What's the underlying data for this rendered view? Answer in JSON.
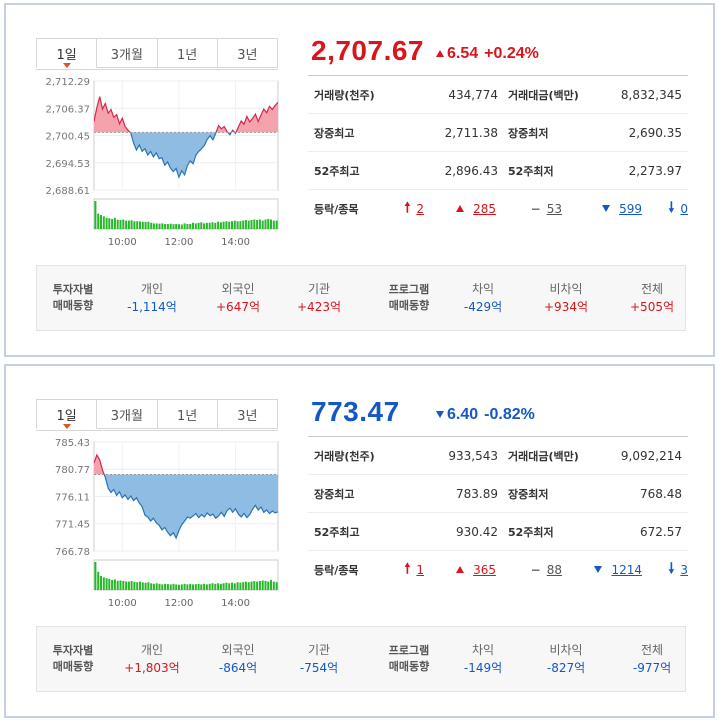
{
  "panels": [
    {
      "tabs": [
        "1일",
        "3개월",
        "1년",
        "3년"
      ],
      "price": "2,707.67",
      "direction": "up",
      "change": "6.54",
      "change_pct": "+0.24%",
      "stats": {
        "vol_label": "거래량(천주)",
        "vol": "434,774",
        "amt_label": "거래대금(백만)",
        "amt": "8,832,345",
        "high_label": "장중최고",
        "high": "2,711.38",
        "low_label": "장중최저",
        "low": "2,690.35",
        "h52_label": "52주최고",
        "h52": "2,896.43",
        "l52_label": "52주최저",
        "l52": "2,273.97",
        "updown_label": "등락/종목",
        "upper_limit": "2",
        "rise": "285",
        "flat": "53",
        "fall": "599",
        "lower_limit": "0"
      },
      "investor": {
        "head": [
          "투자자별",
          "매매동향"
        ],
        "items": [
          {
            "name": "개인",
            "value": "-1,114억",
            "sign": "neg"
          },
          {
            "name": "외국인",
            "value": "+647억",
            "sign": "pos"
          },
          {
            "name": "기관",
            "value": "+423억",
            "sign": "pos"
          }
        ]
      },
      "program": {
        "head": [
          "프로그램",
          "매매동향"
        ],
        "items": [
          {
            "name": "차익",
            "value": "-429억",
            "sign": "neg"
          },
          {
            "name": "비차익",
            "value": "+934억",
            "sign": "pos"
          },
          {
            "name": "전체",
            "value": "+505억",
            "sign": "pos"
          }
        ]
      },
      "chart_data": {
        "type": "area",
        "y_ticks": [
          "2,712.29",
          "2,706.37",
          "2,700.45",
          "2,694.53",
          "2,688.61"
        ],
        "ylim": [
          2688.61,
          2712.29
        ],
        "x_ticks": [
          "10:00",
          "12:00",
          "14:00"
        ],
        "baseline": 2701.13,
        "x": [
          0,
          6,
          12,
          18,
          24,
          30,
          36,
          42,
          48,
          54,
          60,
          66,
          72,
          78,
          84,
          90,
          96,
          102,
          108,
          114,
          120,
          126,
          132,
          138,
          144,
          150,
          156,
          162,
          168,
          174,
          180,
          186,
          192,
          198,
          204,
          210,
          216,
          222,
          228,
          234,
          240,
          246,
          252,
          258,
          264,
          270,
          276,
          282,
          288,
          294,
          300,
          306,
          312,
          318,
          324,
          330,
          336,
          342,
          348,
          354,
          360,
          366,
          372,
          378,
          384,
          390
        ],
        "values": [
          2703.5,
          2706.5,
          2708.9,
          2706.2,
          2707.4,
          2705.3,
          2706.1,
          2704.4,
          2705.0,
          2703.0,
          2704.2,
          2702.4,
          2701.6,
          2701.0,
          2698.8,
          2697.3,
          2698.4,
          2697.0,
          2697.6,
          2696.2,
          2697.0,
          2695.8,
          2696.7,
          2695.4,
          2695.6,
          2694.0,
          2694.7,
          2693.4,
          2692.6,
          2693.3,
          2691.4,
          2692.8,
          2691.9,
          2693.9,
          2694.9,
          2694.3,
          2696.2,
          2697.0,
          2697.6,
          2698.3,
          2699.6,
          2700.4,
          2699.5,
          2700.9,
          2702.6,
          2701.9,
          2702.4,
          2701.3,
          2700.6,
          2701.6,
          2700.9,
          2702.3,
          2703.6,
          2702.9,
          2704.6,
          2703.4,
          2704.1,
          2705.1,
          2703.5,
          2704.9,
          2706.2,
          2705.4,
          2706.8,
          2706.1,
          2707.0,
          2707.67
        ],
        "volume": [
          1.0,
          0.55,
          0.5,
          0.45,
          0.4,
          0.38,
          0.36,
          0.4,
          0.33,
          0.32,
          0.34,
          0.3,
          0.3,
          0.31,
          0.28,
          0.28,
          0.27,
          0.26,
          0.25,
          0.26,
          0.22,
          0.2,
          0.2,
          0.19,
          0.2,
          0.18,
          0.18,
          0.19,
          0.17,
          0.18,
          0.17,
          0.16,
          0.2,
          0.18,
          0.18,
          0.22,
          0.2,
          0.22,
          0.24,
          0.2,
          0.22,
          0.22,
          0.24,
          0.22,
          0.26,
          0.24,
          0.26,
          0.28,
          0.26,
          0.28,
          0.3,
          0.28,
          0.28,
          0.3,
          0.32,
          0.3,
          0.32,
          0.34,
          0.32,
          0.34,
          0.3,
          0.34,
          0.36,
          0.34,
          0.3,
          0.3
        ]
      }
    },
    {
      "tabs": [
        "1일",
        "3개월",
        "1년",
        "3년"
      ],
      "price": "773.47",
      "direction": "down",
      "change": "6.40",
      "change_pct": "-0.82%",
      "stats": {
        "vol_label": "거래량(천주)",
        "vol": "933,543",
        "amt_label": "거래대금(백만)",
        "amt": "9,092,214",
        "high_label": "장중최고",
        "high": "783.89",
        "low_label": "장중최저",
        "low": "768.48",
        "h52_label": "52주최고",
        "h52": "930.42",
        "l52_label": "52주최저",
        "l52": "672.57",
        "updown_label": "등락/종목",
        "upper_limit": "1",
        "rise": "365",
        "flat": "88",
        "fall": "1214",
        "lower_limit": "3"
      },
      "investor": {
        "head": [
          "투자자별",
          "매매동향"
        ],
        "items": [
          {
            "name": "개인",
            "value": "+1,803억",
            "sign": "pos"
          },
          {
            "name": "외국인",
            "value": "-864억",
            "sign": "neg"
          },
          {
            "name": "기관",
            "value": "-754억",
            "sign": "neg"
          }
        ]
      },
      "program": {
        "head": [
          "프로그램",
          "매매동향"
        ],
        "items": [
          {
            "name": "차익",
            "value": "-149억",
            "sign": "neg"
          },
          {
            "name": "비차익",
            "value": "-827억",
            "sign": "neg"
          },
          {
            "name": "전체",
            "value": "-977억",
            "sign": "neg"
          }
        ]
      },
      "chart_data": {
        "type": "area",
        "y_ticks": [
          "785.43",
          "780.77",
          "776.11",
          "771.45",
          "766.78"
        ],
        "ylim": [
          766.78,
          785.43
        ],
        "x_ticks": [
          "10:00",
          "12:00",
          "14:00"
        ],
        "baseline": 779.87,
        "x": [
          0,
          6,
          12,
          18,
          24,
          30,
          36,
          42,
          48,
          54,
          60,
          66,
          72,
          78,
          84,
          90,
          96,
          102,
          108,
          114,
          120,
          126,
          132,
          138,
          144,
          150,
          156,
          162,
          168,
          174,
          180,
          186,
          192,
          198,
          204,
          210,
          216,
          222,
          228,
          234,
          240,
          246,
          252,
          258,
          264,
          270,
          276,
          282,
          288,
          294,
          300,
          306,
          312,
          318,
          324,
          330,
          336,
          342,
          348,
          354,
          360,
          366,
          372,
          378,
          384,
          390
        ],
        "values": [
          781.8,
          783.2,
          782.4,
          780.6,
          779.4,
          777.5,
          776.8,
          777.3,
          776.3,
          776.9,
          775.9,
          776.4,
          775.6,
          776.2,
          775.4,
          775.9,
          775.0,
          774.4,
          772.9,
          772.6,
          771.9,
          772.4,
          771.6,
          771.2,
          770.4,
          770.8,
          770.0,
          769.4,
          769.9,
          769.0,
          770.3,
          771.3,
          771.9,
          772.6,
          772.4,
          772.8,
          773.2,
          772.5,
          773.0,
          772.6,
          773.3,
          772.8,
          773.1,
          772.4,
          772.8,
          773.4,
          772.7,
          773.7,
          774.1,
          773.4,
          774.0,
          773.1,
          772.6,
          773.2,
          772.5,
          773.0,
          773.9,
          774.6,
          773.8,
          774.3,
          773.4,
          773.8,
          773.2,
          773.6,
          773.3,
          773.47
        ],
        "volume": [
          1.0,
          0.65,
          0.5,
          0.45,
          0.42,
          0.4,
          0.36,
          0.38,
          0.33,
          0.34,
          0.32,
          0.3,
          0.3,
          0.32,
          0.29,
          0.28,
          0.3,
          0.27,
          0.26,
          0.28,
          0.24,
          0.22,
          0.24,
          0.22,
          0.2,
          0.22,
          0.21,
          0.2,
          0.22,
          0.2,
          0.19,
          0.2,
          0.22,
          0.2,
          0.22,
          0.2,
          0.21,
          0.22,
          0.2,
          0.22,
          0.2,
          0.22,
          0.24,
          0.22,
          0.24,
          0.22,
          0.24,
          0.26,
          0.24,
          0.26,
          0.24,
          0.28,
          0.26,
          0.28,
          0.3,
          0.28,
          0.3,
          0.32,
          0.3,
          0.32,
          0.34,
          0.32,
          0.3,
          0.36,
          0.3,
          0.28
        ]
      }
    }
  ],
  "colors": {
    "up": "#d9151b",
    "down": "#1458c4",
    "fill_up": "#f4a3ad",
    "fill_down": "#8fbce3",
    "line_up": "#d6274a",
    "line_down": "#2a72b5",
    "volume": "#27b92a"
  }
}
